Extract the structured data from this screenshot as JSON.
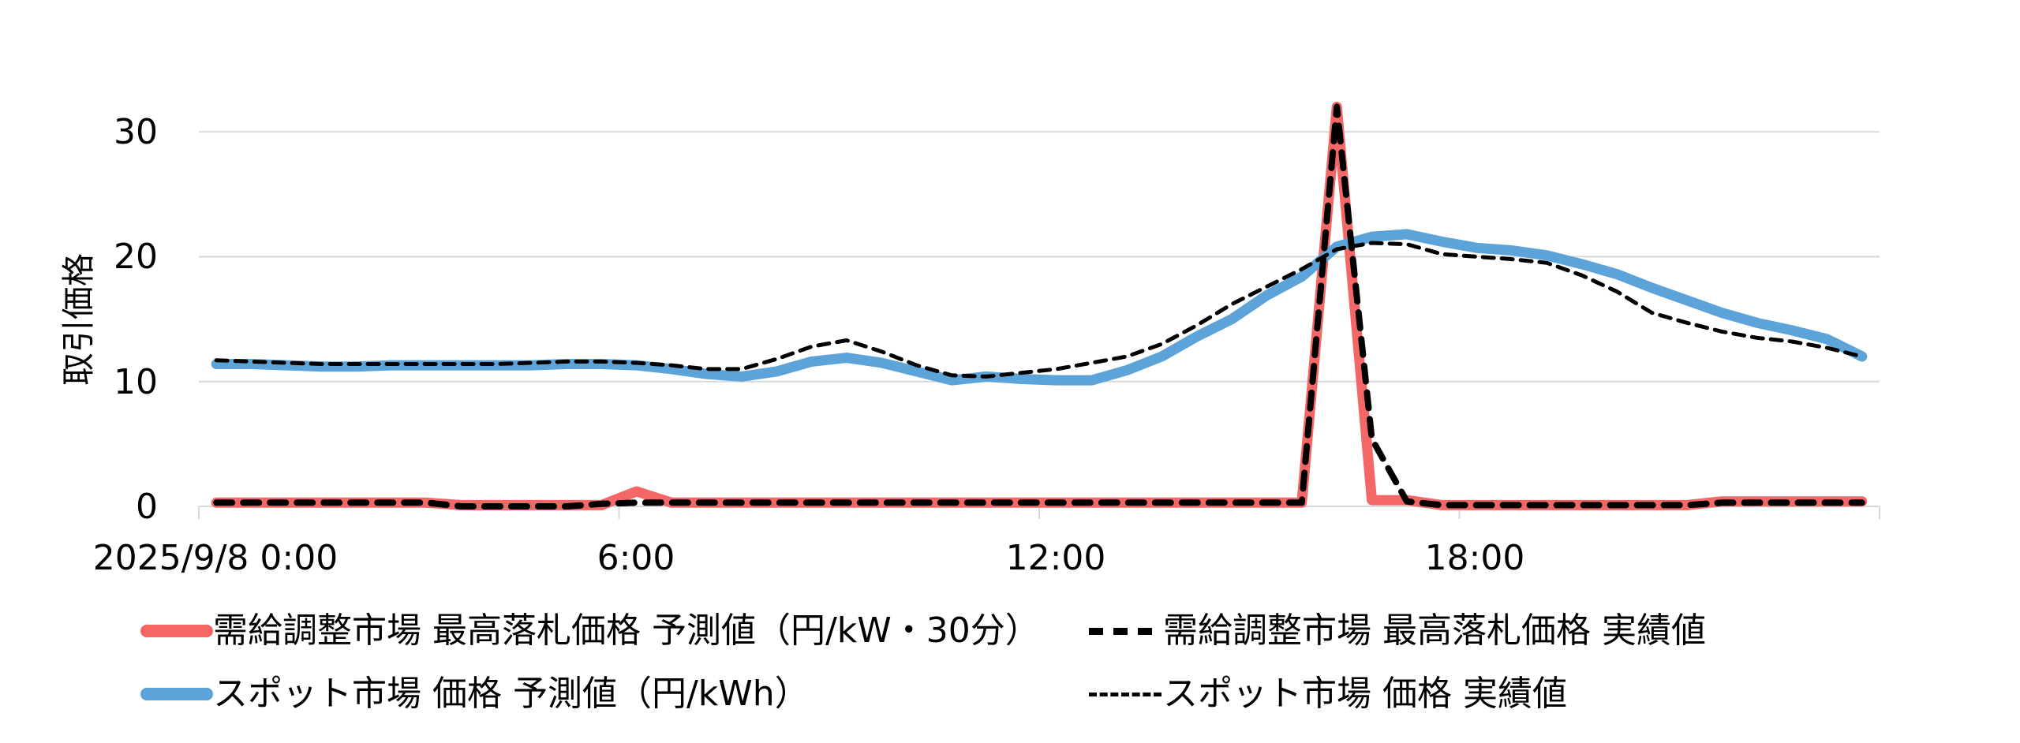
{
  "chart_data": {
    "type": "line",
    "title": "",
    "xlabel": "",
    "ylabel": "取引価格",
    "ylim": [
      0,
      30
    ],
    "yticks": [
      0,
      10,
      20,
      30
    ],
    "grid": true,
    "legend_position": "bottom",
    "x_tick_labels": [
      "2025/9/8 0:00",
      "6:00",
      "12:00",
      "18:00"
    ],
    "x": [
      "0:00",
      "0:30",
      "1:00",
      "1:30",
      "2:00",
      "2:30",
      "3:00",
      "3:30",
      "4:00",
      "4:30",
      "5:00",
      "5:30",
      "6:00",
      "6:30",
      "7:00",
      "7:30",
      "8:00",
      "8:30",
      "9:00",
      "9:30",
      "10:00",
      "10:30",
      "11:00",
      "11:30",
      "12:00",
      "12:30",
      "13:00",
      "13:30",
      "14:00",
      "14:30",
      "15:00",
      "15:30",
      "16:00",
      "16:30",
      "17:00",
      "17:30",
      "18:00",
      "18:30",
      "19:00",
      "19:30",
      "20:00",
      "20:30",
      "21:00",
      "21:30",
      "22:00",
      "22:30",
      "23:00",
      "23:30"
    ],
    "series": [
      {
        "name": "需給調整市場 最高落札価格 予測値（円/kW・30分）",
        "style": "solid-thick",
        "color": "#F46767",
        "values": [
          0.3,
          0.3,
          0.3,
          0.3,
          0.3,
          0.3,
          0.3,
          0.1,
          0.1,
          0.1,
          0.1,
          0.1,
          1.2,
          0.3,
          0.3,
          0.3,
          0.3,
          0.3,
          0.3,
          0.3,
          0.3,
          0.3,
          0.3,
          0.3,
          0.3,
          0.3,
          0.3,
          0.3,
          0.3,
          0.3,
          0.3,
          0.3,
          32.0,
          0.5,
          0.5,
          0.1,
          0.1,
          0.1,
          0.1,
          0.1,
          0.1,
          0.1,
          0.1,
          0.4,
          0.4,
          0.4,
          0.4,
          0.4
        ]
      },
      {
        "name": "需給調整市場 最高落札価格 実績値",
        "style": "dashed-thick",
        "color": "#000000",
        "values": [
          0.3,
          0.3,
          0.3,
          0.3,
          0.3,
          0.3,
          0.3,
          0.0,
          0.0,
          0.0,
          0.0,
          0.2,
          0.3,
          0.3,
          0.3,
          0.3,
          0.3,
          0.3,
          0.3,
          0.3,
          0.3,
          0.3,
          0.3,
          0.3,
          0.3,
          0.3,
          0.3,
          0.3,
          0.3,
          0.3,
          0.3,
          0.3,
          32.0,
          5.4,
          0.4,
          0.1,
          0.1,
          0.1,
          0.1,
          0.1,
          0.1,
          0.1,
          0.1,
          0.3,
          0.3,
          0.3,
          0.3,
          0.3
        ]
      },
      {
        "name": "スポット市場 価格 予測値（円/kWh）",
        "style": "solid-thick",
        "color": "#5BA3D9",
        "values": [
          11.4,
          11.4,
          11.3,
          11.2,
          11.2,
          11.3,
          11.3,
          11.3,
          11.3,
          11.3,
          11.4,
          11.4,
          11.3,
          11.0,
          10.6,
          10.4,
          10.8,
          11.6,
          11.9,
          11.5,
          10.8,
          10.1,
          10.4,
          10.2,
          10.1,
          10.1,
          10.9,
          12.0,
          13.6,
          15.0,
          16.9,
          18.4,
          20.8,
          21.6,
          21.8,
          21.2,
          20.7,
          20.5,
          20.1,
          19.4,
          18.6,
          17.5,
          16.5,
          15.5,
          14.7,
          14.1,
          13.4,
          12.0
        ]
      },
      {
        "name": "スポット市場 価格 実績値",
        "style": "dashed-thin",
        "color": "#000000",
        "values": [
          11.7,
          11.6,
          11.5,
          11.4,
          11.4,
          11.4,
          11.4,
          11.4,
          11.4,
          11.5,
          11.6,
          11.6,
          11.5,
          11.3,
          11.0,
          11.0,
          11.8,
          12.8,
          13.3,
          12.4,
          11.3,
          10.5,
          10.4,
          10.7,
          11.0,
          11.5,
          12.0,
          13.0,
          14.5,
          16.2,
          17.6,
          19.0,
          20.6,
          21.1,
          21.0,
          20.2,
          20.0,
          19.8,
          19.5,
          18.5,
          17.2,
          15.5,
          14.7,
          14.0,
          13.5,
          13.2,
          12.7,
          12.0
        ]
      }
    ]
  },
  "axis": {
    "ylabel": "取引価格",
    "yticks": [
      "0",
      "10",
      "20",
      "30"
    ],
    "xticks": [
      "2025/9/8 0:00",
      "6:00",
      "12:00",
      "18:00"
    ]
  },
  "legend": {
    "items": [
      {
        "label": "需給調整市場 最高落札価格 予測値（円/kW・30分）",
        "icon": "red-line-swatch",
        "color": "#F46767"
      },
      {
        "label": "需給調整市場 最高落札価格 実績値",
        "icon": "black-dashed-swatch",
        "color": "#000000"
      },
      {
        "label": "スポット市場 価格 予測値（円/kWh）",
        "icon": "blue-line-swatch",
        "color": "#5BA3D9"
      },
      {
        "label": "スポット市場 価格 実績値",
        "icon": "black-dotted-swatch",
        "color": "#000000"
      }
    ]
  },
  "colors": {
    "red": "#F46767",
    "blue": "#5BA3D9",
    "black": "#000000",
    "grid": "#D9D9D9"
  }
}
